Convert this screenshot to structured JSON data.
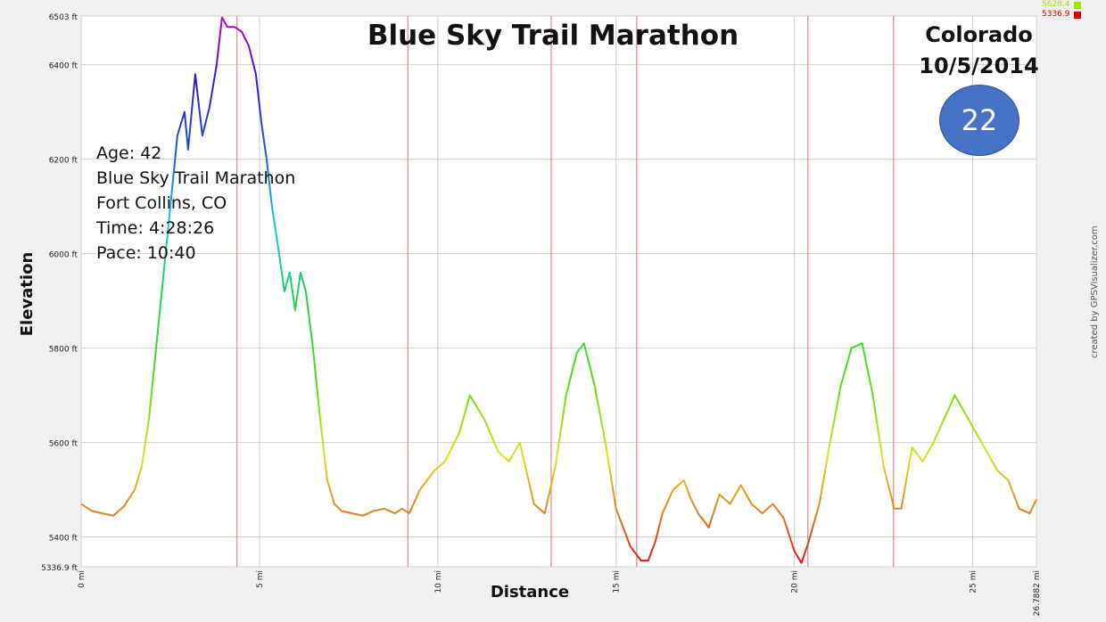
{
  "title": "Blue Sky Trail Marathon",
  "location": {
    "state": "Colorado",
    "date": "10/5/2014"
  },
  "badge": "22",
  "runner_info": {
    "age": "Age: 42",
    "race": "Blue Sky Trail Marathon",
    "city": "Fort Collins, CO",
    "time": "Time:  4:28:26",
    "pace": "Pace:  10:40"
  },
  "legend": [
    {
      "label": "5628.4",
      "color": "#a8e000"
    },
    {
      "label": "5336.9",
      "color": "#e00000"
    }
  ],
  "credit": "created by GPSVisualizer.com",
  "chart_data": {
    "type": "line",
    "title": "Blue Sky Trail Marathon",
    "xlabel": "Distance",
    "ylabel": "Elevation",
    "xlim": [
      0,
      26.7882
    ],
    "ylim": [
      5336.9,
      6503
    ],
    "x_ticks": [
      {
        "value": 0,
        "label": "0 mi"
      },
      {
        "value": 5,
        "label": "5 mi"
      },
      {
        "value": 10,
        "label": "10 mi"
      },
      {
        "value": 15,
        "label": "15 mi"
      },
      {
        "value": 20,
        "label": "20 mi"
      },
      {
        "value": 25,
        "label": "25 mi"
      },
      {
        "value": 26.7882,
        "label": "26.7882 mi"
      }
    ],
    "y_ticks": [
      {
        "value": 5336.9,
        "label": "5336.9 ft"
      },
      {
        "value": 5400,
        "label": "5400 ft"
      },
      {
        "value": 5600,
        "label": "5600 ft"
      },
      {
        "value": 5800,
        "label": "5800 ft"
      },
      {
        "value": 6000,
        "label": "6000 ft"
      },
      {
        "value": 6200,
        "label": "6200 ft"
      },
      {
        "value": 6400,
        "label": "6400 ft"
      },
      {
        "value": 6503,
        "label": "6503 ft"
      }
    ],
    "marker_lines_x": [
      4.37,
      9.16,
      13.18,
      15.58,
      20.38,
      22.78
    ],
    "series": [
      {
        "x": [
          0,
          0.3,
          0.6,
          0.9,
          1.2,
          1.5,
          1.7,
          1.9,
          2.1,
          2.3,
          2.5,
          2.7,
          2.9,
          3.0,
          3.2,
          3.4,
          3.6,
          3.8,
          3.95,
          4.1,
          4.3,
          4.5,
          4.7,
          4.9,
          5.05,
          5.2,
          5.35,
          5.55,
          5.7,
          5.85,
          6.0,
          6.15,
          6.3,
          6.5,
          6.7,
          6.9,
          7.1,
          7.3,
          7.6,
          7.9,
          8.2,
          8.5,
          8.8,
          9.0,
          9.2,
          9.5,
          9.9,
          10.2,
          10.6,
          10.9,
          11.3,
          11.7,
          12.0,
          12.3,
          12.7,
          13.0,
          13.3,
          13.6,
          13.9,
          14.1,
          14.4,
          14.7,
          15.0,
          15.4,
          15.7,
          15.9,
          16.1,
          16.3,
          16.6,
          16.9,
          17.1,
          17.3,
          17.6,
          17.9,
          18.2,
          18.5,
          18.8,
          19.1,
          19.4,
          19.7,
          20.0,
          20.2,
          20.4,
          20.7,
          21.0,
          21.3,
          21.6,
          21.9,
          22.2,
          22.5,
          22.8,
          23.0,
          23.3,
          23.6,
          23.9,
          24.2,
          24.5,
          24.8,
          25.1,
          25.4,
          25.7,
          26.0,
          26.3,
          26.6,
          26.7882
        ],
        "y": [
          5470,
          5455,
          5450,
          5445,
          5465,
          5500,
          5550,
          5650,
          5800,
          5950,
          6100,
          6250,
          6300,
          6220,
          6380,
          6250,
          6310,
          6400,
          6500,
          6480,
          6480,
          6470,
          6440,
          6380,
          6280,
          6200,
          6100,
          6000,
          5920,
          5960,
          5880,
          5960,
          5920,
          5800,
          5650,
          5520,
          5470,
          5455,
          5450,
          5445,
          5455,
          5460,
          5450,
          5460,
          5450,
          5500,
          5540,
          5560,
          5620,
          5700,
          5650,
          5580,
          5560,
          5600,
          5470,
          5450,
          5550,
          5700,
          5790,
          5810,
          5720,
          5600,
          5460,
          5380,
          5350,
          5350,
          5390,
          5450,
          5500,
          5520,
          5480,
          5450,
          5420,
          5490,
          5470,
          5510,
          5470,
          5450,
          5470,
          5440,
          5370,
          5345,
          5390,
          5470,
          5600,
          5720,
          5800,
          5810,
          5700,
          5550,
          5460,
          5460,
          5590,
          5560,
          5600,
          5650,
          5700,
          5660,
          5620,
          5580,
          5540,
          5520,
          5460,
          5450,
          5480
        ]
      }
    ]
  }
}
